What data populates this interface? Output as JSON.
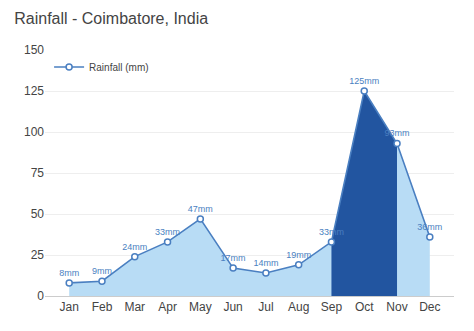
{
  "chart_data": {
    "type": "area",
    "title": "Rainfall - Coimbatore, India",
    "categories": [
      "Jan",
      "Feb",
      "Mar",
      "Apr",
      "May",
      "Jun",
      "Jul",
      "Aug",
      "Sep",
      "Oct",
      "Nov",
      "Dec"
    ],
    "series": [
      {
        "name": "Rainfall (mm)",
        "color": "#4a7fc1",
        "marker": "circle",
        "values": [
          8,
          9,
          24,
          33,
          47,
          17,
          14,
          19,
          33,
          125,
          93,
          36
        ],
        "value_labels": [
          "8mm",
          "9mm",
          "24mm",
          "33mm",
          "47mm",
          "17mm",
          "14mm",
          "19mm",
          "33mm",
          "125mm",
          "93mm",
          "36mm"
        ],
        "colors": [
          "#b8dcf5",
          "#b8dcf5",
          "#b8dcf5",
          "#b8dcf5",
          "#b8dcf5",
          "#b8dcf5",
          "#b8dcf5",
          "#b8dcf5",
          "#2255a0",
          "#2255a0",
          "#2255a0",
          "#b8dcf5"
        ]
      }
    ],
    "ylim": [
      0,
      150
    ],
    "yticks": [
      0,
      25,
      50,
      75,
      100,
      125,
      150
    ],
    "grid": true,
    "legend": "upper left",
    "data_labels": true
  }
}
